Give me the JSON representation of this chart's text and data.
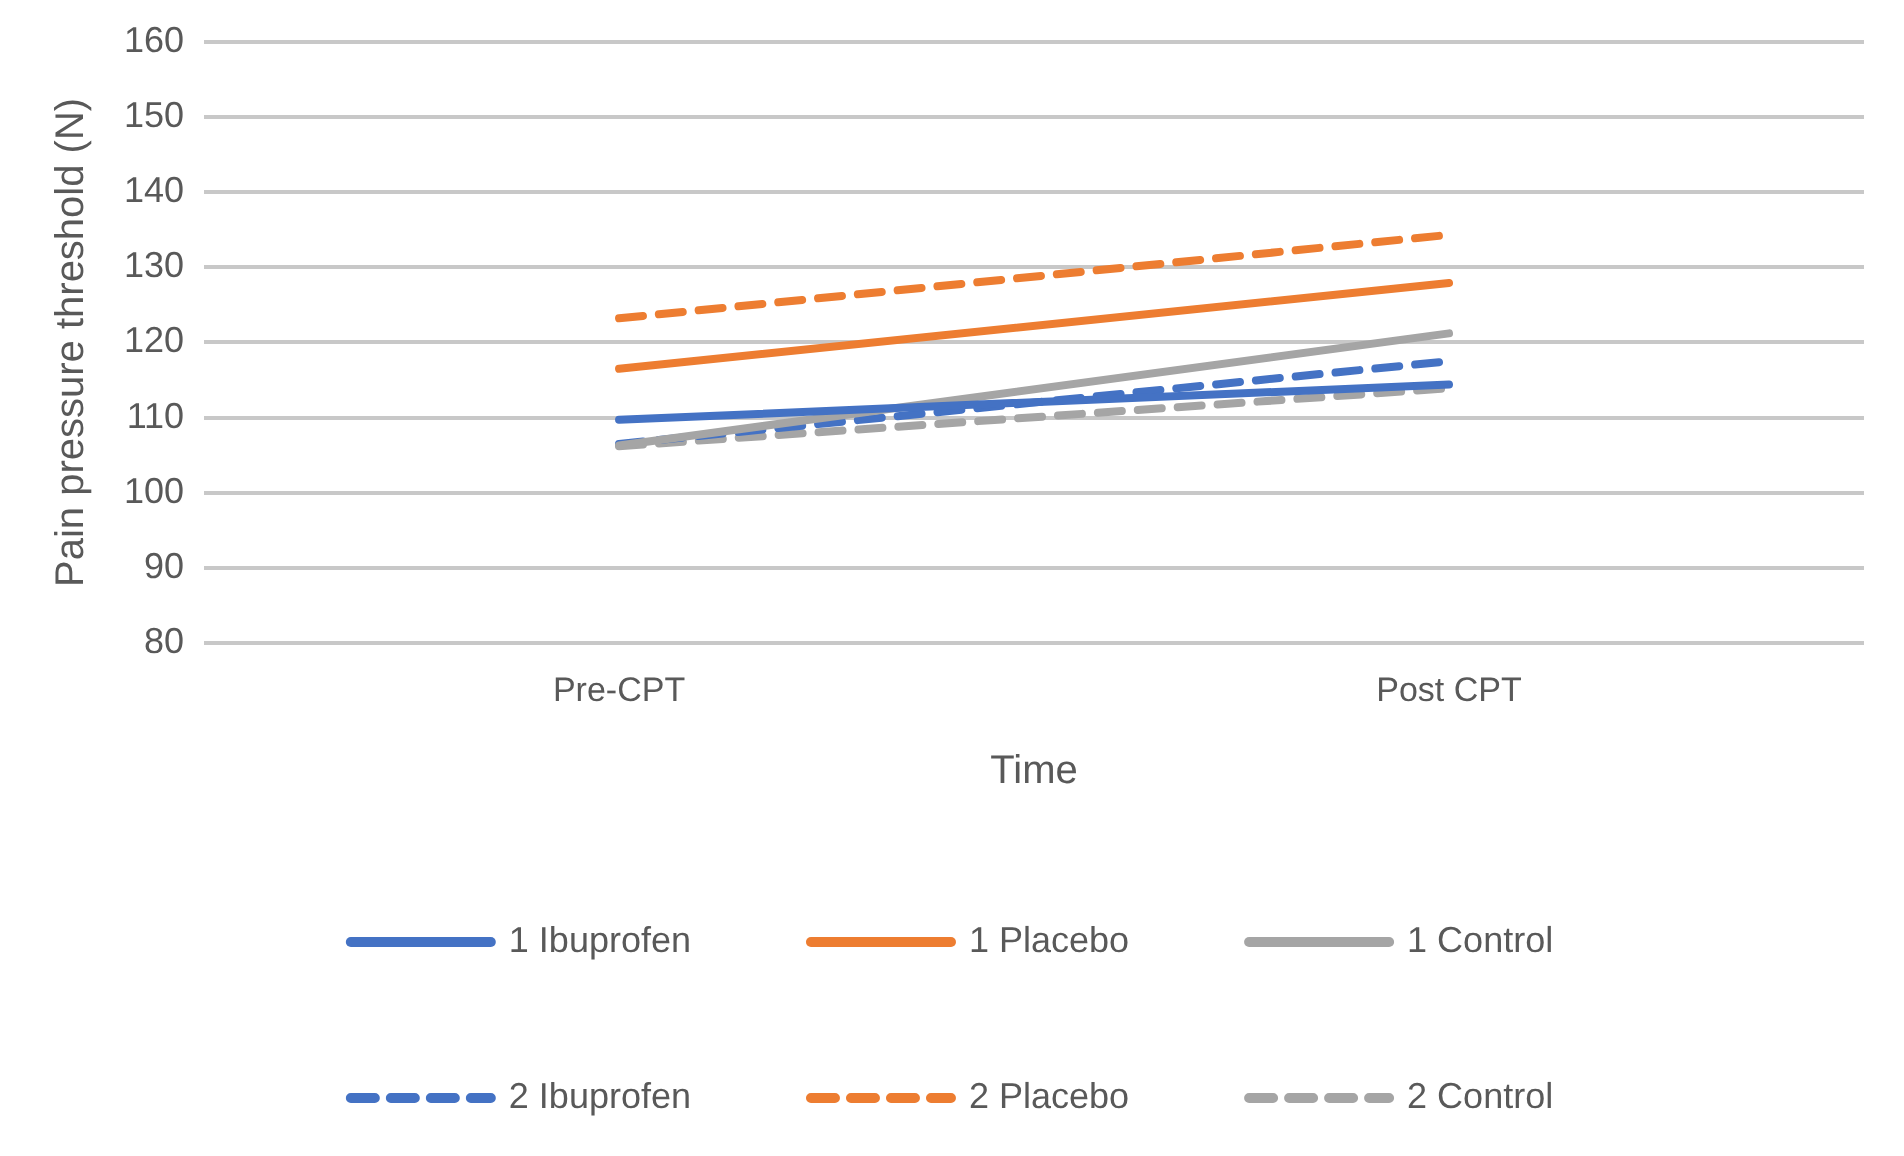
{
  "chart_data": {
    "type": "line",
    "xlabel": "Time",
    "ylabel": "Pain pressure threshold (N)",
    "categories": [
      "Pre-CPT",
      "Post CPT"
    ],
    "series": [
      {
        "name": "1 Ibuprofen",
        "color": "#4472c4",
        "line_style": "solid",
        "values": [
          109.7,
          114.4
        ]
      },
      {
        "name": "1 Placebo",
        "color": "#ed7d31",
        "line_style": "solid",
        "values": [
          116.5,
          127.9
        ]
      },
      {
        "name": "1 Control",
        "color": "#a5a5a5",
        "line_style": "solid",
        "values": [
          106.3,
          121.2
        ]
      },
      {
        "name": "2 Ibuprofen",
        "color": "#4472c4",
        "line_style": "dashed",
        "values": [
          106.5,
          117.5
        ]
      },
      {
        "name": "2 Placebo",
        "color": "#ed7d31",
        "line_style": "dashed",
        "values": [
          123.2,
          134.3
        ]
      },
      {
        "name": "2 Control",
        "color": "#a5a5a5",
        "line_style": "dashed",
        "values": [
          106.2,
          113.9
        ]
      }
    ],
    "ylim": [
      80,
      160
    ],
    "yticks": [
      80,
      90,
      100,
      110,
      120,
      130,
      140,
      150,
      160
    ],
    "grid": "y",
    "legend": "bottom",
    "marker": "none"
  }
}
